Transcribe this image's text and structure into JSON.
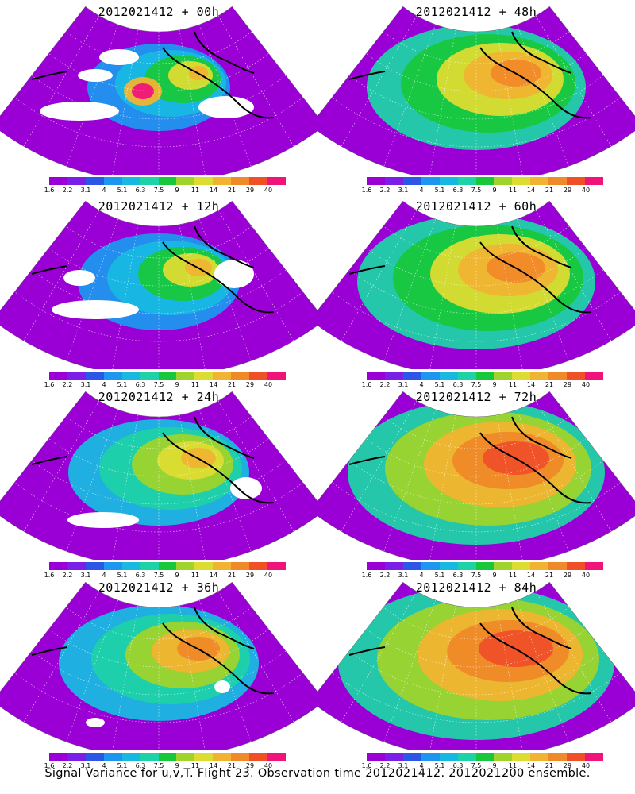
{
  "colorscale": {
    "ticks": [
      "1.6",
      "2.2",
      "3.1",
      "4",
      "5.1",
      "6.3",
      "7.5",
      "9",
      "11",
      "14",
      "21",
      "29",
      "40"
    ],
    "colors": [
      "#9a00d6",
      "#7b1fe8",
      "#2b56e8",
      "#1e96f0",
      "#18b8e0",
      "#1ed2a8",
      "#18c83c",
      "#9ed42c",
      "#dcdc32",
      "#f0b432",
      "#f08a28",
      "#f05028",
      "#f0147a"
    ]
  },
  "panels": [
    {
      "id": "p00",
      "title": "2012021412 + 00h",
      "level": 0
    },
    {
      "id": "p48",
      "title": "2012021412 + 48h",
      "level": 4
    },
    {
      "id": "p12",
      "title": "2012021412 + 12h",
      "level": 1
    },
    {
      "id": "p60",
      "title": "2012021412 + 60h",
      "level": 5
    },
    {
      "id": "p24",
      "title": "2012021412 + 24h",
      "level": 2
    },
    {
      "id": "p72",
      "title": "2012021412 + 72h",
      "level": 6
    },
    {
      "id": "p36",
      "title": "2012021412 + 36h",
      "level": 3
    },
    {
      "id": "p84",
      "title": "2012021412 + 84h",
      "level": 7
    }
  ],
  "caption": "Signal Variance for u,v,T. Flight 23. Observation time 2012021412. 2012021200 ensemble."
}
